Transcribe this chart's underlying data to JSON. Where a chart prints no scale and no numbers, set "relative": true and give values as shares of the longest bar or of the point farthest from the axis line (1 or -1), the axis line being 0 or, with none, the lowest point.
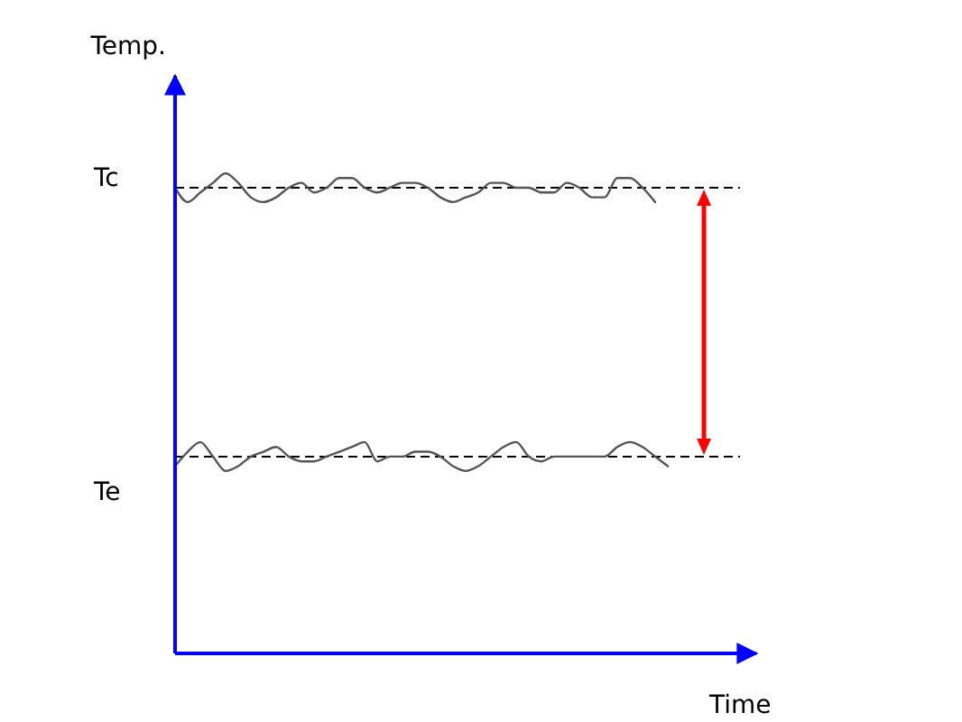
{
  "chart_data": {
    "type": "line",
    "relative": true,
    "ylabel": "Temp.",
    "xlabel": "Time",
    "grid": false,
    "marker": "none",
    "line_style": "solid",
    "categories": [
      null,
      null,
      null,
      null,
      null,
      null,
      null,
      null,
      null,
      null,
      null,
      null,
      null,
      null,
      null,
      null,
      null,
      null,
      null,
      null,
      null,
      null,
      null,
      null,
      null,
      null,
      null,
      null,
      null,
      null,
      null,
      null,
      null,
      null,
      null,
      null,
      null,
      null,
      null,
      null,
      null,
      null,
      null,
      null,
      null,
      null,
      null
    ],
    "series": [
      {
        "color": "#555555",
        "values": [
          0.97,
          0.94,
          0.96,
          0.98,
          1.0,
          0.98,
          0.95,
          0.94,
          0.95,
          0.97,
          0.98,
          0.96,
          0.97,
          0.99,
          0.99,
          0.97,
          0.96,
          0.97,
          0.98,
          0.98,
          0.97,
          0.95,
          0.94,
          0.95,
          0.96,
          0.98,
          0.98,
          0.97,
          0.97,
          0.96,
          0.96,
          0.98,
          0.97,
          0.95,
          0.95,
          0.99,
          0.99,
          0.97,
          0.94,
          null,
          null,
          null,
          null,
          null,
          null,
          null,
          null
        ]
      },
      {
        "color": "#555555",
        "values": [
          0.39,
          0.42,
          0.44,
          0.41,
          0.38,
          0.39,
          0.41,
          0.42,
          0.43,
          0.41,
          0.4,
          0.4,
          0.41,
          0.42,
          0.43,
          0.44,
          0.4,
          0.41,
          0.41,
          0.42,
          0.42,
          0.41,
          0.39,
          0.38,
          0.39,
          0.41,
          0.43,
          0.44,
          0.41,
          0.4,
          0.41,
          0.41,
          0.41,
          0.41,
          0.41,
          0.43,
          0.44,
          0.43,
          0.41,
          0.39,
          null,
          null,
          null,
          null,
          null,
          null,
          null
        ]
      }
    ],
    "ref_lines": [
      {
        "axis": "y",
        "value": 0.97,
        "label": "Tc",
        "color": "#000000",
        "line_style": "dashed"
      },
      {
        "axis": "y",
        "value": 0.41,
        "label": "Te",
        "color": "#000000",
        "line_style": "dashed"
      }
    ]
  }
}
